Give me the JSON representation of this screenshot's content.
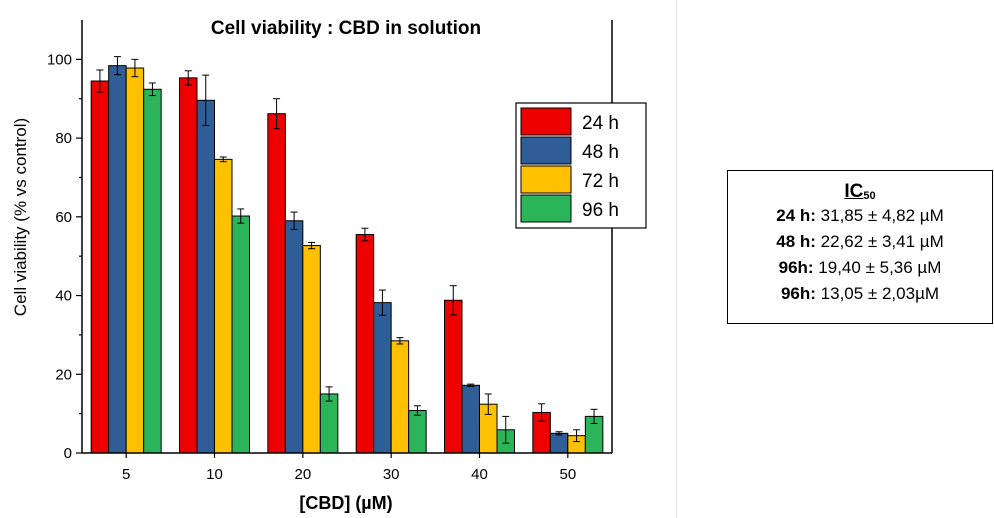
{
  "chart_data": {
    "type": "bar",
    "title": "Cell viability : CBD in solution",
    "xlabel": "[CBD] (µM)",
    "ylabel": "Cell viability (% vs control)",
    "categories": [
      "5",
      "10",
      "20",
      "30",
      "40",
      "50"
    ],
    "ylim": [
      0,
      110
    ],
    "yticks": [
      "0",
      "20",
      "40",
      "60",
      "80",
      "100"
    ],
    "grid": false,
    "legend_position": "top-right",
    "series": [
      {
        "name": "24 h",
        "color": "#ee0000",
        "values": [
          94.5,
          95.3,
          86.2,
          55.5,
          38.8,
          10.3
        ],
        "errors": [
          2.8,
          1.8,
          3.8,
          1.6,
          3.7,
          2.2
        ]
      },
      {
        "name": "48 h",
        "color": "#2f5d96",
        "values": [
          98.4,
          89.6,
          59.0,
          38.2,
          17.2,
          5.0
        ],
        "errors": [
          2.3,
          6.4,
          2.2,
          3.2,
          0.3,
          0.4
        ]
      },
      {
        "name": "72 h",
        "color": "#ffc000",
        "values": [
          97.8,
          74.6,
          52.7,
          28.5,
          12.4,
          4.4
        ],
        "errors": [
          2.2,
          0.6,
          0.8,
          0.8,
          2.6,
          1.5
        ]
      },
      {
        "name": "96 h",
        "color": "#2cb45b",
        "values": [
          92.4,
          60.2,
          15.0,
          10.8,
          5.9,
          9.3
        ],
        "errors": [
          1.6,
          1.8,
          1.8,
          1.2,
          3.4,
          1.8
        ]
      }
    ]
  },
  "ic50": {
    "title_main": "IC",
    "title_sub": "50",
    "rows": [
      {
        "label": "24 h:",
        "value": " 31,85 ± 4,82 µM"
      },
      {
        "label": "48 h:",
        "value": " 22,62 ± 3,41 µM"
      },
      {
        "label": "96h:",
        "value": " 19,40 ± 5,36 µM"
      },
      {
        "label": "96h:",
        "value": " 13,05 ± 2,03µM"
      }
    ]
  }
}
